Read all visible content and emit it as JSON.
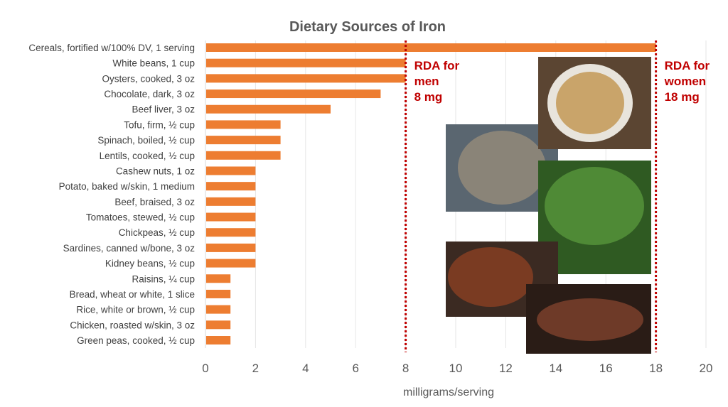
{
  "chart_data": {
    "type": "bar",
    "orientation": "horizontal",
    "title": "Dietary Sources of Iron",
    "xlabel": "milligrams/serving",
    "ylabel": "",
    "xlim": [
      0,
      20
    ],
    "xticks": [
      "0",
      "2",
      "4",
      "6",
      "8",
      "10",
      "12",
      "14",
      "16",
      "18",
      "20"
    ],
    "grid": true,
    "bar_color": "#ed7d31",
    "categories": [
      "Cereals, fortified w/100% DV, 1 serving",
      "White beans, 1 cup",
      "Oysters, cooked, 3 oz",
      "Chocolate, dark, 3 oz",
      "Beef liver, 3 oz",
      "Tofu, firm, ½ cup",
      "Spinach, boiled, ½ cup",
      "Lentils, cooked, ½ cup",
      "Cashew nuts, 1 oz",
      "Potato, baked w/skin, 1 medium",
      "Beef, braised, 3 oz",
      "Tomatoes, stewed, ½ cup",
      "Chickpeas, ½ cup",
      "Sardines, canned w/bone, 3 oz",
      "Kidney beans, ½ cup",
      "Raisins, ¼ cup",
      "Bread, wheat or white, 1 slice",
      "Rice, white or brown, ½ cup",
      "Chicken, roasted w/skin, 3 oz",
      "Green peas, cooked, ½ cup"
    ],
    "values": [
      18,
      8,
      8,
      7,
      5,
      3,
      3,
      3,
      2,
      2,
      2,
      2,
      2,
      2,
      2,
      1,
      1,
      1,
      1,
      1
    ],
    "reference_lines": [
      {
        "value": 8,
        "label_lines": [
          "RDA for",
          "men",
          "8 mg"
        ],
        "color": "#c00000"
      },
      {
        "value": 18,
        "label_lines": [
          "RDA for",
          "women",
          "18 mg"
        ],
        "color": "#c00000"
      }
    ]
  }
}
